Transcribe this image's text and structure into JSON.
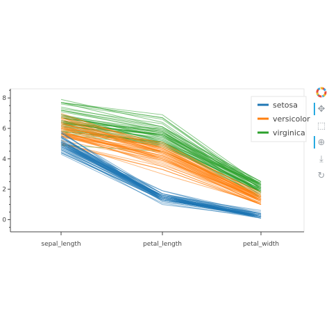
{
  "chart_data": {
    "type": "line",
    "subtype": "parallel-coordinates",
    "categories": [
      "sepal_length",
      "petal_length",
      "petal_width"
    ],
    "ylim": [
      -0.8,
      8.6
    ],
    "yticks": [
      0,
      2,
      4,
      6,
      8
    ],
    "grid": false,
    "legend_placement": "top-right",
    "series": [
      {
        "name": "setosa",
        "color": "#1f77b4",
        "values": [
          [
            5.1,
            1.4,
            0.2
          ],
          [
            4.9,
            1.4,
            0.2
          ],
          [
            4.7,
            1.3,
            0.2
          ],
          [
            4.6,
            1.5,
            0.2
          ],
          [
            5.0,
            1.4,
            0.2
          ],
          [
            5.4,
            1.7,
            0.4
          ],
          [
            4.6,
            1.4,
            0.3
          ],
          [
            5.0,
            1.5,
            0.2
          ],
          [
            4.4,
            1.4,
            0.2
          ],
          [
            4.9,
            1.5,
            0.1
          ],
          [
            5.4,
            1.5,
            0.2
          ],
          [
            4.8,
            1.6,
            0.2
          ],
          [
            4.8,
            1.4,
            0.1
          ],
          [
            4.3,
            1.1,
            0.1
          ],
          [
            5.8,
            1.2,
            0.2
          ],
          [
            5.7,
            1.5,
            0.4
          ],
          [
            5.4,
            1.3,
            0.4
          ],
          [
            5.1,
            1.4,
            0.3
          ],
          [
            5.7,
            1.7,
            0.3
          ],
          [
            5.1,
            1.5,
            0.3
          ],
          [
            5.4,
            1.7,
            0.2
          ],
          [
            5.1,
            1.5,
            0.4
          ],
          [
            4.6,
            1.0,
            0.2
          ],
          [
            5.1,
            1.7,
            0.5
          ],
          [
            4.8,
            1.9,
            0.2
          ],
          [
            5.0,
            1.6,
            0.2
          ],
          [
            5.0,
            1.6,
            0.4
          ],
          [
            5.2,
            1.5,
            0.2
          ],
          [
            5.2,
            1.4,
            0.2
          ],
          [
            4.7,
            1.6,
            0.2
          ],
          [
            4.8,
            1.6,
            0.2
          ],
          [
            5.4,
            1.5,
            0.4
          ],
          [
            5.2,
            1.5,
            0.1
          ],
          [
            5.5,
            1.4,
            0.2
          ],
          [
            4.9,
            1.5,
            0.2
          ],
          [
            5.0,
            1.2,
            0.2
          ],
          [
            5.5,
            1.3,
            0.2
          ],
          [
            4.9,
            1.4,
            0.1
          ],
          [
            4.4,
            1.3,
            0.2
          ],
          [
            5.1,
            1.5,
            0.2
          ],
          [
            5.0,
            1.3,
            0.3
          ],
          [
            4.5,
            1.3,
            0.3
          ],
          [
            4.4,
            1.3,
            0.2
          ],
          [
            5.0,
            1.6,
            0.6
          ],
          [
            5.1,
            1.9,
            0.4
          ],
          [
            4.8,
            1.4,
            0.3
          ],
          [
            5.1,
            1.6,
            0.2
          ],
          [
            4.6,
            1.4,
            0.2
          ],
          [
            5.3,
            1.5,
            0.2
          ],
          [
            5.0,
            1.4,
            0.2
          ]
        ]
      },
      {
        "name": "versicolor",
        "color": "#ff7f0e",
        "values": [
          [
            7.0,
            4.7,
            1.4
          ],
          [
            6.4,
            4.5,
            1.5
          ],
          [
            6.9,
            4.9,
            1.5
          ],
          [
            5.5,
            4.0,
            1.3
          ],
          [
            6.5,
            4.6,
            1.5
          ],
          [
            5.7,
            4.5,
            1.3
          ],
          [
            6.3,
            4.7,
            1.6
          ],
          [
            4.9,
            3.3,
            1.0
          ],
          [
            6.6,
            4.6,
            1.3
          ],
          [
            5.2,
            3.9,
            1.4
          ],
          [
            5.0,
            3.5,
            1.0
          ],
          [
            5.9,
            4.2,
            1.5
          ],
          [
            6.0,
            4.0,
            1.0
          ],
          [
            6.1,
            4.7,
            1.4
          ],
          [
            5.6,
            3.6,
            1.3
          ],
          [
            6.7,
            4.4,
            1.4
          ],
          [
            5.6,
            4.5,
            1.5
          ],
          [
            5.8,
            4.1,
            1.0
          ],
          [
            6.2,
            4.5,
            1.5
          ],
          [
            5.6,
            3.9,
            1.1
          ],
          [
            5.9,
            4.8,
            1.8
          ],
          [
            6.1,
            4.0,
            1.3
          ],
          [
            6.3,
            4.9,
            1.5
          ],
          [
            6.1,
            4.7,
            1.2
          ],
          [
            6.4,
            4.3,
            1.3
          ],
          [
            6.6,
            4.4,
            1.4
          ],
          [
            6.8,
            4.8,
            1.4
          ],
          [
            6.7,
            5.0,
            1.7
          ],
          [
            6.0,
            4.5,
            1.5
          ],
          [
            5.7,
            3.5,
            1.0
          ],
          [
            5.5,
            3.8,
            1.1
          ],
          [
            5.5,
            3.7,
            1.0
          ],
          [
            5.8,
            3.9,
            1.2
          ],
          [
            6.0,
            5.1,
            1.6
          ],
          [
            5.4,
            4.5,
            1.5
          ],
          [
            6.0,
            4.5,
            1.6
          ],
          [
            6.7,
            4.7,
            1.5
          ],
          [
            6.3,
            4.4,
            1.3
          ],
          [
            5.6,
            4.1,
            1.3
          ],
          [
            5.5,
            4.0,
            1.3
          ],
          [
            5.5,
            4.4,
            1.2
          ],
          [
            6.1,
            4.6,
            1.4
          ],
          [
            5.8,
            4.0,
            1.2
          ],
          [
            5.0,
            3.3,
            1.0
          ],
          [
            5.6,
            4.2,
            1.3
          ],
          [
            5.7,
            4.2,
            1.2
          ],
          [
            5.7,
            4.2,
            1.3
          ],
          [
            6.2,
            4.3,
            1.3
          ],
          [
            5.1,
            3.0,
            1.1
          ],
          [
            5.7,
            4.1,
            1.3
          ]
        ]
      },
      {
        "name": "virginica",
        "color": "#2ca02c",
        "values": [
          [
            6.3,
            6.0,
            2.5
          ],
          [
            5.8,
            5.1,
            1.9
          ],
          [
            7.1,
            5.9,
            2.1
          ],
          [
            6.3,
            5.6,
            1.8
          ],
          [
            6.5,
            5.8,
            2.2
          ],
          [
            7.6,
            6.6,
            2.1
          ],
          [
            4.9,
            4.5,
            1.7
          ],
          [
            7.3,
            6.3,
            1.8
          ],
          [
            6.7,
            5.8,
            1.8
          ],
          [
            7.2,
            6.1,
            2.5
          ],
          [
            6.5,
            5.1,
            2.0
          ],
          [
            6.4,
            5.3,
            1.9
          ],
          [
            6.8,
            5.5,
            2.1
          ],
          [
            5.7,
            5.0,
            2.0
          ],
          [
            5.8,
            5.1,
            2.4
          ],
          [
            6.4,
            5.3,
            2.3
          ],
          [
            6.5,
            5.5,
            1.8
          ],
          [
            7.7,
            6.7,
            2.2
          ],
          [
            7.7,
            6.9,
            2.3
          ],
          [
            6.0,
            5.0,
            1.5
          ],
          [
            6.9,
            5.7,
            2.3
          ],
          [
            5.6,
            4.9,
            2.0
          ],
          [
            7.7,
            6.7,
            2.0
          ],
          [
            6.3,
            4.9,
            1.8
          ],
          [
            6.7,
            5.7,
            2.1
          ],
          [
            7.2,
            6.0,
            1.8
          ],
          [
            6.2,
            4.8,
            1.8
          ],
          [
            6.1,
            4.9,
            1.8
          ],
          [
            6.4,
            5.6,
            2.1
          ],
          [
            7.2,
            5.8,
            1.6
          ],
          [
            7.4,
            6.1,
            1.9
          ],
          [
            7.9,
            6.4,
            2.0
          ],
          [
            6.4,
            5.6,
            2.2
          ],
          [
            6.3,
            5.1,
            1.5
          ],
          [
            6.1,
            5.6,
            1.4
          ],
          [
            7.7,
            6.1,
            2.3
          ],
          [
            6.3,
            5.6,
            2.4
          ],
          [
            6.4,
            5.5,
            1.8
          ],
          [
            6.0,
            4.8,
            1.8
          ],
          [
            6.9,
            5.4,
            2.1
          ],
          [
            6.7,
            5.6,
            2.4
          ],
          [
            6.9,
            5.1,
            2.3
          ],
          [
            5.8,
            5.1,
            1.9
          ],
          [
            6.8,
            5.9,
            2.3
          ],
          [
            6.7,
            5.7,
            2.5
          ],
          [
            6.7,
            5.2,
            2.3
          ],
          [
            6.3,
            5.0,
            1.9
          ],
          [
            6.5,
            5.2,
            2.0
          ],
          [
            6.2,
            5.4,
            2.3
          ],
          [
            5.9,
            5.1,
            1.8
          ]
        ]
      }
    ]
  },
  "toolbar": {
    "tools": [
      {
        "icon": "pan-icon",
        "glyph": "✥",
        "active": true
      },
      {
        "icon": "box-zoom-icon",
        "glyph": "⬚",
        "active": false
      },
      {
        "icon": "wheel-zoom-icon",
        "glyph": "⊕",
        "active": true
      },
      {
        "icon": "save-icon",
        "glyph": "⤓",
        "active": false
      },
      {
        "icon": "reset-icon",
        "glyph": "↻",
        "active": false
      }
    ]
  }
}
